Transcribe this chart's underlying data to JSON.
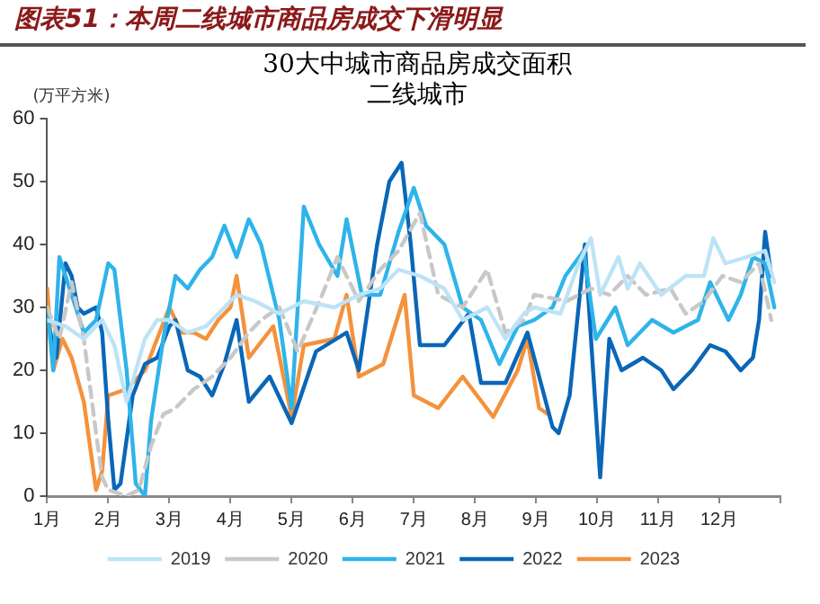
{
  "chart_data": {
    "type": "line",
    "title": "图表51：本周二线城市商品房成交下滑明显",
    "subtitle": "30大中城市商品房成交面积二线城市",
    "ylabel": "(万平方米)",
    "xlim": [
      1,
      13
    ],
    "xticks": [
      {
        "value": 1,
        "label": "1月"
      },
      {
        "value": 2,
        "label": "2月"
      },
      {
        "value": 3,
        "label": "3月"
      },
      {
        "value": 4,
        "label": "4月"
      },
      {
        "value": 5,
        "label": "5月"
      },
      {
        "value": 6,
        "label": "6月"
      },
      {
        "value": 7,
        "label": "7月"
      },
      {
        "value": 8,
        "label": "8月"
      },
      {
        "value": 9,
        "label": "9月"
      },
      {
        "value": 10,
        "label": "10月"
      },
      {
        "value": 11,
        "label": "11月"
      },
      {
        "value": 12,
        "label": "12月"
      },
      {
        "value": 13,
        "label": null
      }
    ],
    "ylim": [
      0,
      60
    ],
    "yticks": [
      0,
      10,
      20,
      30,
      40,
      50,
      60
    ],
    "grid": false,
    "legend": "bottom",
    "marker": "none",
    "series": [
      {
        "name": "2019",
        "color": "#bde3f7",
        "x": [
          1,
          1.3,
          1.6,
          1.9,
          2.1,
          2.3,
          2.6,
          2.8,
          3,
          3.3,
          3.6,
          3.9,
          4.1,
          4.4,
          4.8,
          5.2,
          5.7,
          6.1,
          6.45,
          6.75,
          7.1,
          7.5,
          7.8,
          8.2,
          8.5,
          8.8,
          8.97,
          9.4,
          9.7,
          9.9,
          10.05,
          10.35,
          10.5,
          10.7,
          11.05,
          11.45,
          11.75,
          11.9,
          12.1,
          12.45,
          12.75,
          12.9
        ],
        "values": [
          28,
          27,
          25,
          28,
          24,
          15,
          25,
          28,
          28,
          26,
          27,
          30,
          32,
          31,
          29,
          31,
          30,
          32,
          33,
          36,
          35,
          33,
          28,
          30,
          25,
          29,
          30,
          29,
          37,
          41,
          32,
          38,
          33,
          37,
          32,
          35,
          35,
          41,
          37,
          38,
          39,
          34
        ]
      },
      {
        "name": "2020",
        "color": "#c8c8c8",
        "line_style": "dashed",
        "x": [
          1,
          1.2,
          1.4,
          1.6,
          1.8,
          1.9,
          2,
          2.3,
          2.5,
          2.7,
          2.9,
          3.1,
          3.4,
          3.7,
          4,
          4.3,
          4.5,
          4.8,
          5.1,
          5.5,
          5.75,
          6.1,
          6.45,
          6.75,
          7.1,
          7.4,
          7.8,
          8.2,
          8.5,
          8.8,
          8.97,
          9.5,
          9.9,
          10.2,
          10.5,
          10.8,
          11.2,
          11.45,
          11.75,
          12.05,
          12.35,
          12.65,
          12.85
        ],
        "values": [
          30,
          25,
          34,
          25,
          10,
          3,
          1,
          0,
          1,
          8,
          13,
          14,
          17,
          19,
          22,
          26,
          28,
          30,
          23,
          32,
          38,
          31,
          36,
          39,
          45,
          32,
          30,
          36,
          26,
          28,
          32,
          31,
          33,
          32,
          35,
          32,
          33,
          29,
          31,
          35,
          34,
          37,
          28
        ]
      },
      {
        "name": "2021",
        "color": "#2eb4ea",
        "x": [
          1,
          1.1,
          1.2,
          1.4,
          1.6,
          1.8,
          2,
          2.1,
          2.3,
          2.45,
          2.6,
          2.7,
          2.9,
          3.1,
          3.3,
          3.5,
          3.7,
          3.9,
          4.1,
          4.3,
          4.5,
          4.8,
          5,
          5.2,
          5.45,
          5.75,
          5.9,
          6.15,
          6.45,
          6.75,
          7,
          7.2,
          7.5,
          7.8,
          8.1,
          8.4,
          8.7,
          8.97,
          9.27,
          9.48,
          9.78,
          9.98,
          10.3,
          10.5,
          10.9,
          11.25,
          11.65,
          11.85,
          12.15,
          12.35,
          12.55,
          12.75,
          12.9
        ],
        "values": [
          30,
          20,
          38,
          32,
          26,
          28,
          37,
          36,
          20,
          2,
          0,
          12,
          25,
          35,
          33,
          36,
          38,
          43,
          38,
          44,
          40,
          28,
          14,
          46,
          40,
          35,
          44,
          32,
          32,
          42,
          49,
          43,
          40,
          30,
          28,
          21,
          27,
          28,
          30,
          35,
          39,
          25,
          30,
          24,
          28,
          26,
          28,
          34,
          28,
          32,
          38,
          37,
          30
        ]
      },
      {
        "name": "2022",
        "color": "#0a66b8",
        "x": [
          1,
          1.15,
          1.3,
          1.4,
          1.5,
          1.6,
          1.8,
          1.9,
          2,
          2.1,
          2.2,
          2.4,
          2.6,
          2.8,
          3,
          3.1,
          3.3,
          3.5,
          3.7,
          3.9,
          4.1,
          4.3,
          4.64,
          5,
          5.4,
          5.9,
          6.1,
          6.4,
          6.6,
          6.8,
          6.95,
          7.1,
          7.5,
          7.9,
          8.1,
          8.5,
          8.86,
          9.27,
          9.37,
          9.55,
          9.8,
          9.9,
          10.05,
          10.2,
          10.4,
          10.75,
          11.05,
          11.25,
          11.55,
          11.85,
          12.1,
          12.35,
          12.55,
          12.65,
          12.75,
          12.85
        ],
        "values": [
          28,
          22,
          37,
          35,
          30,
          29,
          30,
          26,
          12,
          1,
          2,
          16,
          21,
          22,
          27,
          28,
          20,
          19,
          16,
          21,
          28,
          15,
          19,
          11.6,
          23,
          26,
          20,
          40,
          50,
          53,
          40,
          24,
          24,
          29,
          18,
          18,
          26,
          11,
          10,
          16,
          40,
          25,
          3,
          25,
          20,
          22,
          20,
          17,
          20,
          24,
          23,
          20,
          22,
          28,
          42,
          35
        ]
      },
      {
        "name": "2023",
        "color": "#f4923c",
        "x": [
          1,
          1.1,
          1.25,
          1.4,
          1.6,
          1.8,
          1.9,
          2,
          2.3,
          2.6,
          2.8,
          3,
          3.2,
          3.4,
          3.6,
          3.8,
          4,
          4.1,
          4.3,
          4.7,
          5,
          5.2,
          5.7,
          5.9,
          6.1,
          6.5,
          6.85,
          7,
          7.4,
          7.8,
          8.3,
          8.7,
          8.86,
          9.05,
          9.2
        ],
        "values": [
          33,
          20,
          25,
          22,
          15,
          1,
          4,
          16,
          17,
          20,
          25,
          30,
          26,
          26,
          25,
          28,
          30,
          35,
          22,
          27,
          12.6,
          24,
          25,
          32,
          19,
          21,
          32,
          16,
          14,
          19,
          12.6,
          20,
          25,
          14,
          13
        ]
      }
    ]
  }
}
